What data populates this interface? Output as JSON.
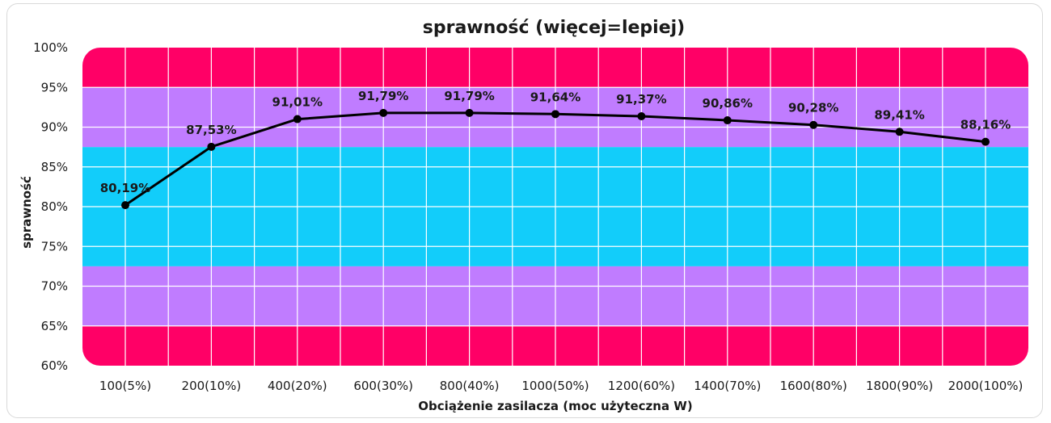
{
  "chart_data": {
    "type": "line",
    "title": "sprawność (więcej=lepiej)",
    "xlabel": "Obciążenie zasilacza (moc użyteczna W)",
    "ylabel": "sprawność",
    "categories": [
      "100(5%)",
      "200(10%)",
      "400(20%)",
      "600(30%)",
      "800(40%)",
      "1000(50%)",
      "1200(60%)",
      "1400(70%)",
      "1600(80%)",
      "1800(90%)",
      "2000(100%)"
    ],
    "series": [
      {
        "values": [
          80.19,
          87.53,
          91.01,
          91.79,
          91.79,
          91.64,
          91.37,
          90.86,
          90.28,
          89.41,
          88.16
        ],
        "labels": [
          "80,19%",
          "87,53%",
          "91,01%",
          "91,79%",
          "91,79%",
          "91,64%",
          "91,37%",
          "90,86%",
          "90,28%",
          "89,41%",
          "88,16%"
        ],
        "color": "#000000"
      }
    ],
    "ylim": [
      60,
      100
    ],
    "yticks": [
      "60%",
      "65%",
      "70%",
      "75%",
      "80%",
      "85%",
      "90%",
      "95%",
      "100%"
    ],
    "grid": true,
    "legend": "none",
    "bands": [
      {
        "from": 60,
        "to": 65,
        "color": "#ff0066"
      },
      {
        "from": 65,
        "to": 72.5,
        "color": "#c07cff"
      },
      {
        "from": 72.5,
        "to": 87.5,
        "color": "#12cdfa"
      },
      {
        "from": 87.5,
        "to": 95,
        "color": "#c07cff"
      },
      {
        "from": 95,
        "to": 100,
        "color": "#ff0066"
      }
    ]
  }
}
